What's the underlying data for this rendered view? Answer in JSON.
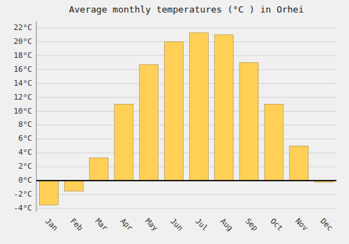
{
  "chart_data": {
    "type": "bar",
    "title": "Average monthly temperatures (°C ) in Orhei",
    "categories": [
      "Jan",
      "Feb",
      "Mar",
      "Apr",
      "May",
      "Jun",
      "Jul",
      "Aug",
      "Sep",
      "Oct",
      "Nov",
      "Dec"
    ],
    "values": [
      -3.5,
      -1.5,
      3.3,
      11.0,
      16.7,
      20.0,
      21.3,
      21.0,
      17.0,
      11.0,
      5.0,
      -0.2
    ],
    "color": "#FFD055",
    "ylim": [
      -4.5,
      23
    ],
    "yticks": [
      {
        "value": -4,
        "label": "-4°C"
      },
      {
        "value": -2,
        "label": "-2°C"
      },
      {
        "value": 0,
        "label": "0°C"
      },
      {
        "value": 2,
        "label": "2°C"
      },
      {
        "value": 4,
        "label": "4°C"
      },
      {
        "value": 6,
        "label": "6°C"
      },
      {
        "value": 8,
        "label": "8°C"
      },
      {
        "value": 10,
        "label": "10°C"
      },
      {
        "value": 12,
        "label": "12°C"
      },
      {
        "value": 14,
        "label": "14°C"
      },
      {
        "value": 16,
        "label": "16°C"
      },
      {
        "value": 18,
        "label": "18°C"
      },
      {
        "value": 20,
        "label": "20°C"
      },
      {
        "value": 22,
        "label": "22°C"
      }
    ],
    "grid": true
  }
}
